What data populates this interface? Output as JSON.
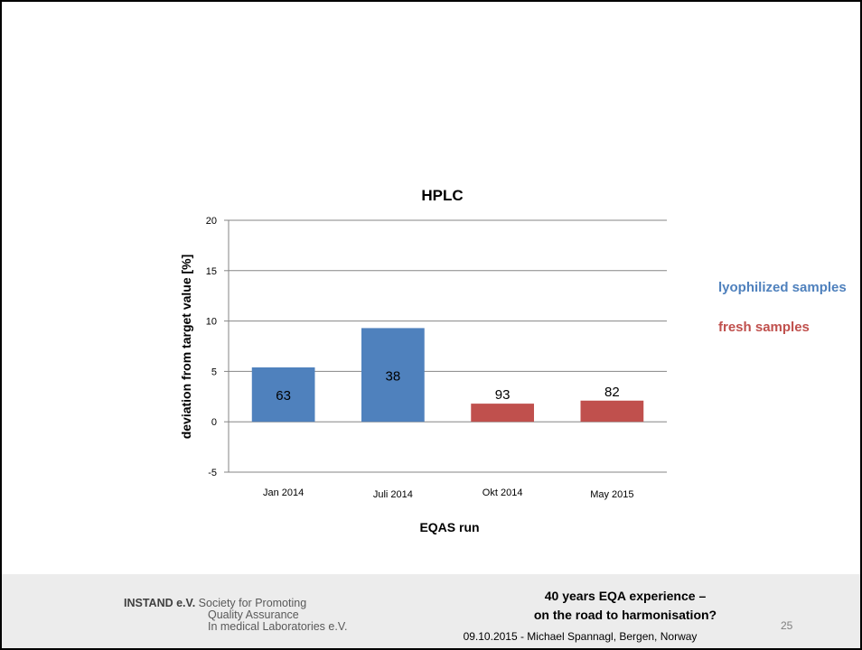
{
  "chart_data": {
    "type": "bar",
    "title": "HPLC",
    "xlabel": "EQAS run",
    "ylabel": "deviation from target value [%]",
    "ylim": [
      -5,
      20
    ],
    "yticks": [
      -5,
      0,
      5,
      10,
      15,
      20
    ],
    "grid": true,
    "categories": [
      "Jan 2014",
      "Juli 2014",
      "Okt 2014",
      "May 2015"
    ],
    "values": [
      5.4,
      9.3,
      1.8,
      2.1
    ],
    "bar_labels": [
      "63",
      "38",
      "93",
      "82"
    ],
    "bar_groups": [
      "lyophilized samples",
      "lyophilized samples",
      "fresh samples",
      "fresh samples"
    ],
    "legend": [
      {
        "name": "lyophilized samples",
        "color": "#4f81bd"
      },
      {
        "name": "fresh samples",
        "color": "#c0504d"
      }
    ],
    "legend_position": "right"
  },
  "footer": {
    "org_name": "INSTAND e.V.",
    "org_line1": "Society for Promoting",
    "org_line2": "Quality Assurance",
    "org_line3": "In medical Laboratories e.V.",
    "title_line1": "40 years EQA experience –",
    "title_line2": "on the road to harmonisation?",
    "subtitle": "09.10.2015 - Michael Spannagl, Bergen, Norway",
    "page_number": "25"
  },
  "colors": {
    "lyophilized": "#4f81bd",
    "fresh": "#c0504d",
    "footer_bg": "#ececec"
  }
}
